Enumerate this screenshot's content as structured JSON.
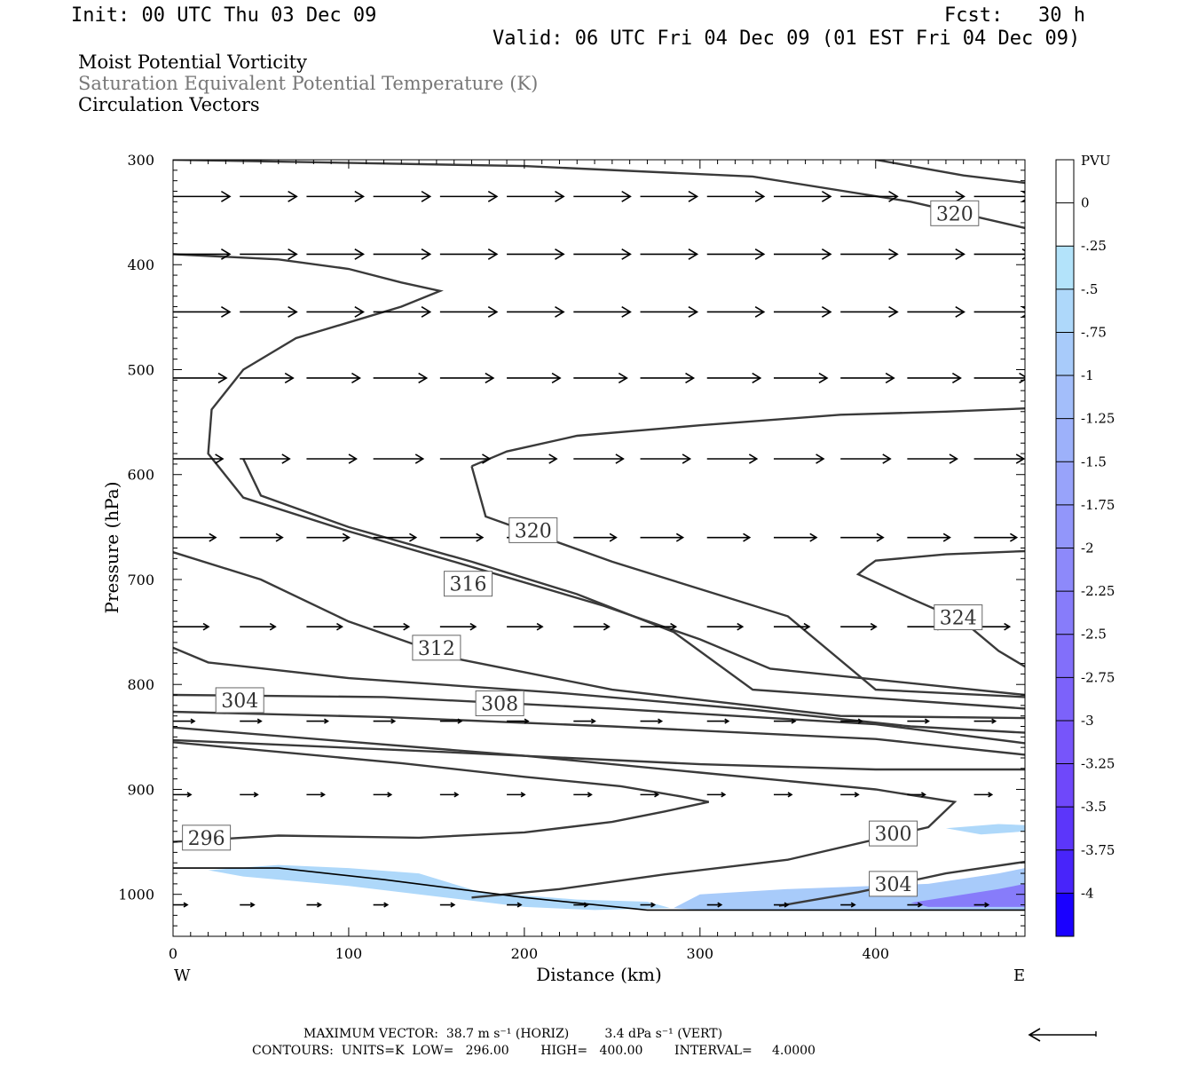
{
  "header": {
    "init": "Init: 00 UTC Thu 03 Dec 09",
    "fcst": "Fcst:   30 h",
    "valid": "Valid: 06 UTC Fri 04 Dec 09 (01 EST Fri 04 Dec 09)"
  },
  "fields": {
    "line1": "Moist Potential Vorticity",
    "line2": "Saturation Equivalent Potential Temperature (K)",
    "line3": "Circulation Vectors"
  },
  "chart_data": {
    "type": "contour",
    "xlabel": "Distance (km)",
    "ylabel": "Pressure (hPa)",
    "x_ticks": [
      0,
      100,
      200,
      300,
      400
    ],
    "y_ticks": [
      300,
      400,
      500,
      600,
      700,
      800,
      900,
      1000
    ],
    "xlim": [
      0,
      485
    ],
    "ylim": [
      300,
      1040
    ],
    "y_inverted": true,
    "west_label": "W",
    "east_label": "E",
    "colorbar": {
      "units": "PVU",
      "levels": [
        "0",
        "-.25",
        "-.5",
        "-.75",
        "-1",
        "-1.25",
        "-1.5",
        "-1.75",
        "-2",
        "-2.25",
        "-2.5",
        "-2.75",
        "-3",
        "-3.25",
        "-3.5",
        "-3.75",
        "-4"
      ],
      "colors": [
        "#ffffff",
        "#b3e3fa",
        "#aed8fa",
        "#a8cbfa",
        "#a3befa",
        "#9db1fa",
        "#98a3fa",
        "#9296fa",
        "#8d89fa",
        "#877cfa",
        "#826ffa",
        "#7c62fa",
        "#7755fa",
        "#6f48fa",
        "#5c36fa",
        "#4824fa",
        "#1a00ff"
      ]
    },
    "contour_labels": [
      {
        "text": "320",
        "x": 445,
        "p": 351
      },
      {
        "text": "320",
        "x": 205,
        "p": 653
      },
      {
        "text": "316",
        "x": 168,
        "p": 704
      },
      {
        "text": "324",
        "x": 447,
        "p": 736
      },
      {
        "text": "312",
        "x": 150,
        "p": 765
      },
      {
        "text": "308",
        "x": 186,
        "p": 818
      },
      {
        "text": "304",
        "x": 38,
        "p": 815
      },
      {
        "text": "300",
        "x": 410,
        "p": 942
      },
      {
        "text": "296",
        "x": 19,
        "p": 946
      },
      {
        "text": "304",
        "x": 410,
        "p": 990
      }
    ],
    "contours": [
      {
        "level": 296,
        "points": [
          [
            0,
            950
          ],
          [
            60,
            944
          ],
          [
            140,
            946
          ],
          [
            200,
            941
          ],
          [
            250,
            931
          ],
          [
            280,
            921
          ],
          [
            305,
            912
          ],
          [
            290,
            907
          ],
          [
            255,
            897
          ],
          [
            200,
            888
          ],
          [
            130,
            875
          ],
          [
            0,
            855
          ]
        ]
      },
      {
        "level": 300,
        "points": [
          [
            0,
            853
          ],
          [
            150,
            864
          ],
          [
            300,
            876
          ],
          [
            400,
            881
          ],
          [
            485,
            881
          ]
        ]
      },
      {
        "level": 300,
        "points": [
          [
            170,
            1003
          ],
          [
            220,
            995
          ],
          [
            280,
            981
          ],
          [
            350,
            967
          ],
          [
            430,
            936
          ],
          [
            445,
            912
          ],
          [
            400,
            900
          ],
          [
            300,
            884
          ],
          [
            200,
            868
          ],
          [
            0,
            841
          ]
        ]
      },
      {
        "level": 304,
        "points": [
          [
            0,
            826
          ],
          [
            120,
            831
          ],
          [
            250,
            840
          ],
          [
            400,
            852
          ],
          [
            485,
            867
          ]
        ]
      },
      {
        "level": 304,
        "points": [
          [
            345,
            1011
          ],
          [
            390,
            998
          ],
          [
            440,
            980
          ],
          [
            485,
            969
          ]
        ]
      },
      {
        "level": 308,
        "points": [
          [
            0,
            810
          ],
          [
            120,
            812
          ],
          [
            250,
            823
          ],
          [
            400,
            838
          ],
          [
            485,
            856
          ]
        ]
      },
      {
        "level": 312,
        "points": [
          [
            0,
            765
          ],
          [
            20,
            779
          ],
          [
            100,
            794
          ],
          [
            220,
            808
          ],
          [
            330,
            824
          ],
          [
            420,
            840
          ],
          [
            485,
            846
          ]
        ]
      },
      {
        "level": 316,
        "points": [
          [
            0,
            674
          ],
          [
            50,
            700
          ],
          [
            100,
            740
          ],
          [
            160,
            775
          ],
          [
            250,
            805
          ],
          [
            380,
            830
          ],
          [
            485,
            832
          ]
        ]
      },
      {
        "level": 320,
        "points": [
          [
            40,
            585
          ],
          [
            50,
            620
          ],
          [
            100,
            650
          ],
          [
            170,
            683
          ],
          [
            230,
            714
          ],
          [
            285,
            750
          ],
          [
            330,
            805
          ],
          [
            485,
            823
          ]
        ]
      },
      {
        "level": 320,
        "points": [
          [
            0,
            390
          ],
          [
            60,
            395
          ],
          [
            100,
            404
          ],
          [
            130,
            417
          ],
          [
            152,
            425
          ],
          [
            130,
            440
          ],
          [
            100,
            455
          ],
          [
            70,
            470
          ],
          [
            40,
            500
          ],
          [
            22,
            538
          ],
          [
            20,
            580
          ],
          [
            40,
            622
          ],
          [
            100,
            654
          ],
          [
            160,
            683
          ],
          [
            245,
            725
          ],
          [
            300,
            757
          ],
          [
            340,
            785
          ],
          [
            485,
            810
          ]
        ]
      },
      {
        "level": 320,
        "points": [
          [
            170,
            592
          ],
          [
            190,
            578
          ],
          [
            230,
            563
          ],
          [
            300,
            553
          ],
          [
            380,
            543
          ],
          [
            440,
            540
          ],
          [
            485,
            537
          ]
        ]
      },
      {
        "level": 320,
        "points": [
          [
            170,
            592
          ],
          [
            178,
            640
          ],
          [
            250,
            683
          ],
          [
            350,
            735
          ],
          [
            400,
            805
          ],
          [
            485,
            812
          ]
        ]
      },
      {
        "level": 320,
        "points": [
          [
            0,
            300
          ],
          [
            200,
            306
          ],
          [
            330,
            316
          ],
          [
            420,
            340
          ],
          [
            485,
            365
          ]
        ]
      },
      {
        "level": 324,
        "points": [
          [
            400,
            300
          ],
          [
            450,
            315
          ],
          [
            485,
            322
          ]
        ]
      },
      {
        "level": 324,
        "points": [
          [
            485,
            673
          ],
          [
            440,
            676
          ],
          [
            400,
            682
          ],
          [
            395,
            688
          ],
          [
            390,
            695
          ],
          [
            420,
            718
          ],
          [
            450,
            740
          ],
          [
            470,
            768
          ],
          [
            485,
            783
          ]
        ]
      }
    ],
    "surface": [
      [
        0,
        975
      ],
      [
        60,
        975
      ],
      [
        120,
        986
      ],
      [
        200,
        1003
      ],
      [
        270,
        1015
      ],
      [
        485,
        1015
      ]
    ],
    "pv_shading": [
      {
        "points": [
          [
            20,
            977
          ],
          [
            60,
            972
          ],
          [
            100,
            975
          ],
          [
            140,
            980
          ],
          [
            175,
            998
          ],
          [
            230,
            1005
          ],
          [
            270,
            1007
          ],
          [
            283,
            1013
          ],
          [
            240,
            1015
          ],
          [
            200,
            1012
          ],
          [
            150,
            1002
          ],
          [
            100,
            992
          ],
          [
            40,
            983
          ]
        ],
        "pv": -0.4
      },
      {
        "points": [
          [
            285,
            1013
          ],
          [
            300,
            1000
          ],
          [
            350,
            995
          ],
          [
            430,
            990
          ],
          [
            470,
            980
          ],
          [
            485,
            975
          ],
          [
            485,
            1015
          ],
          [
            300,
            1015
          ]
        ],
        "pv": -0.75
      },
      {
        "points": [
          [
            420,
            1008
          ],
          [
            470,
            995
          ],
          [
            485,
            990
          ],
          [
            485,
            1012
          ],
          [
            430,
            1012
          ]
        ],
        "pv": -2.25
      },
      {
        "points": [
          [
            440,
            937
          ],
          [
            470,
            933
          ],
          [
            485,
            934
          ],
          [
            485,
            940
          ],
          [
            460,
            943
          ]
        ],
        "pv": -0.3
      }
    ],
    "vector_rows": [
      {
        "p": 335,
        "x0": 0,
        "dx": 38,
        "len": 32
      },
      {
        "p": 390,
        "x0": 0,
        "dx": 38,
        "len": 32
      },
      {
        "p": 445,
        "x0": 0,
        "dx": 38,
        "len": 32
      },
      {
        "p": 508,
        "x0": 0,
        "dx": 38,
        "len": 30
      },
      {
        "p": 585,
        "x0": 0,
        "dx": 38,
        "len": 28
      },
      {
        "p": 660,
        "x0": 0,
        "dx": 38,
        "len": 24
      },
      {
        "p": 745,
        "x0": 0,
        "dx": 38,
        "len": 20
      },
      {
        "p": 835,
        "x0": 0,
        "dx": 38,
        "len": 12
      },
      {
        "p": 905,
        "x0": 0,
        "dx": 38,
        "len": 10
      },
      {
        "p": 1010,
        "x0": 0,
        "dx": 38,
        "len": 8
      }
    ]
  },
  "footer": {
    "max_vector": "MAXIMUM VECTOR:  38.7 m s⁻¹ (HORIZ)         3.4 dPa s⁻¹ (VERT)",
    "contours": "CONTOURS:  UNITS=K  LOW=   296.00        HIGH=   400.00        INTERVAL=     4.0000"
  }
}
